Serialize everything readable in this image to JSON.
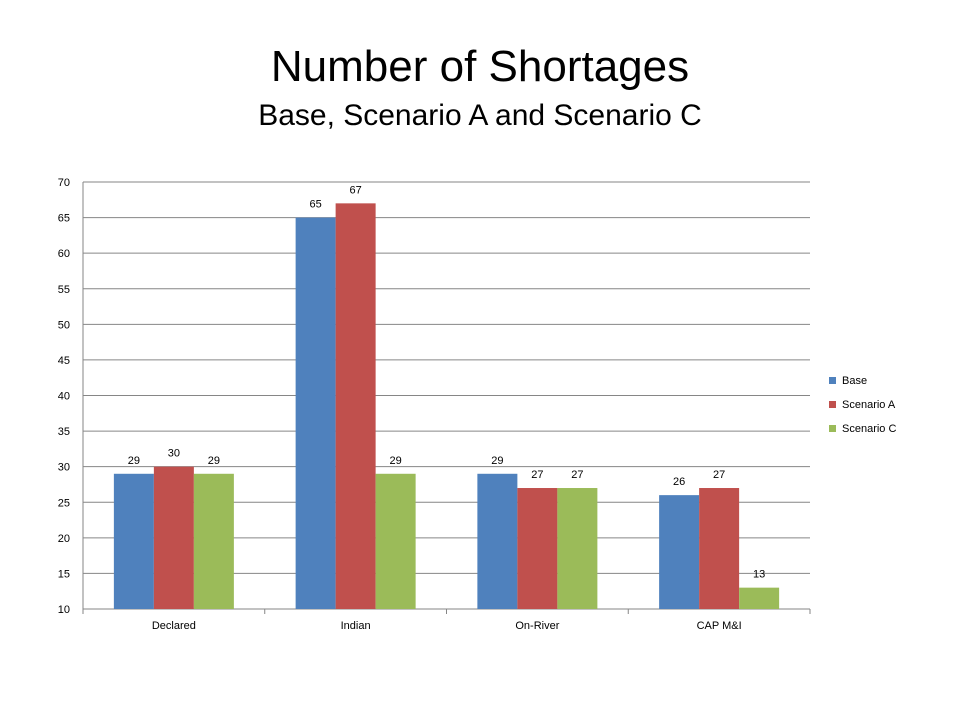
{
  "slide": {
    "title": "Number of Shortages",
    "subtitle": "Base, Scenario A and Scenario C"
  },
  "chart_data": {
    "type": "bar",
    "title": "Number of Shortages",
    "subtitle": "Base, Scenario A and Scenario C",
    "categories": [
      "Declared",
      "Indian",
      "On-River",
      "CAP M&I"
    ],
    "series": [
      {
        "name": "Base",
        "color": "#4F81BD",
        "values": [
          29,
          65,
          29,
          26
        ]
      },
      {
        "name": "Scenario A",
        "color": "#C0504D",
        "values": [
          30,
          67,
          27,
          27
        ]
      },
      {
        "name": "Scenario C",
        "color": "#9BBB59",
        "values": [
          29,
          29,
          27,
          13
        ]
      }
    ],
    "xlabel": "",
    "ylabel": "",
    "ylim": [
      10,
      70
    ],
    "yticks": [
      10,
      15,
      20,
      25,
      30,
      35,
      40,
      45,
      50,
      55,
      60,
      65,
      70
    ],
    "grid": true,
    "data_labels": true,
    "legend_position": "right"
  }
}
